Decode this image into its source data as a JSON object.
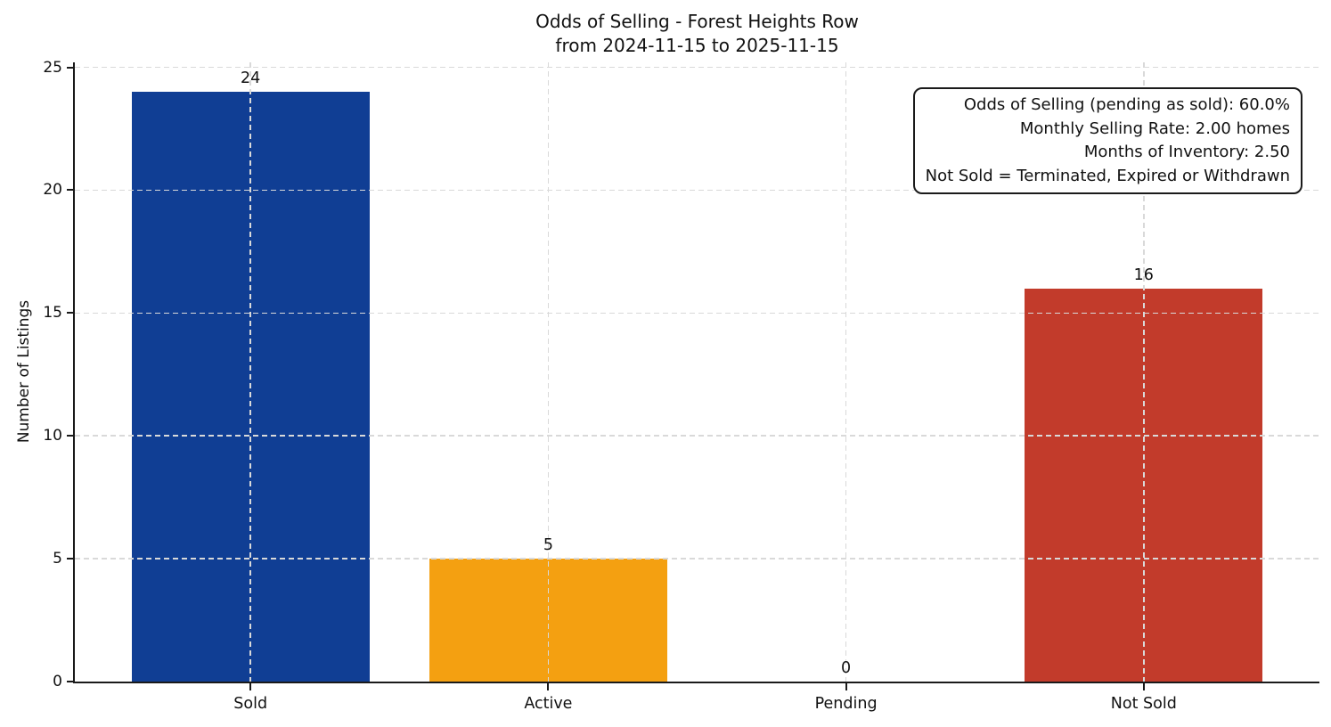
{
  "chart_data": {
    "type": "bar",
    "title_lines": [
      "Odds of Selling - Forest Heights Row",
      "from 2024-11-15 to 2025-11-15"
    ],
    "title": "Odds of Selling - Forest Heights Row\nfrom 2024-11-15 to 2025-11-15",
    "categories": [
      "Sold",
      "Active",
      "Pending",
      "Not Sold"
    ],
    "values": [
      24,
      5,
      0,
      16
    ],
    "colors": [
      "#103e94",
      "#f4a011",
      null,
      "#c23b2b"
    ],
    "xlabel": "",
    "ylabel": "Number of Listings",
    "yticks": [
      0,
      5,
      10,
      15,
      20,
      25
    ],
    "ylim": [
      0,
      25.2
    ],
    "xlim": [
      -0.59,
      3.59
    ],
    "bar_width_fraction": 0.8,
    "grid": true,
    "grid_style": "dashed",
    "legend_position": "none",
    "annotation_box": {
      "position": "top-right",
      "text_align": "right",
      "lines": [
        "Odds of Selling (pending as sold): 60.0%",
        "Monthly Selling Rate: 2.00 homes",
        "Months of Inventory: 2.50",
        "Not Sold = Terminated, Expired or Withdrawn"
      ]
    }
  },
  "style_colors": {
    "grid": "#d9d9d9",
    "spine": "#1a1a1a",
    "text": "#111111",
    "background": "#ffffff"
  }
}
